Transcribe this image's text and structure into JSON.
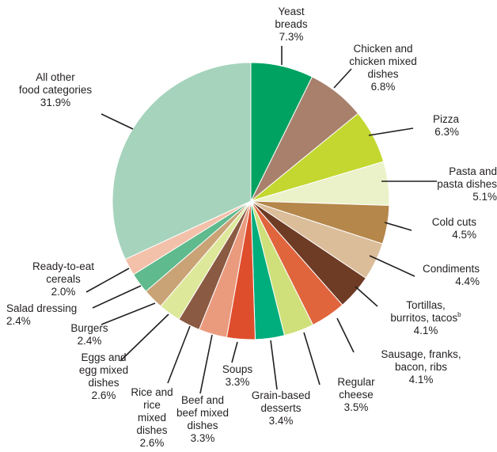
{
  "chart_data": {
    "type": "pie",
    "title": "",
    "start": "12 o'clock",
    "direction": "clockwise",
    "slices": [
      {
        "label": "Yeast breads",
        "lines": [
          "Yeast",
          "breads",
          "7.3%"
        ],
        "value": 7.3,
        "color": "#00a261"
      },
      {
        "label": "Chicken and chicken mixed dishes",
        "lines": [
          "Chicken and",
          "chicken mixed",
          "dishes",
          "6.8%"
        ],
        "value": 6.8,
        "color": "#a8806c"
      },
      {
        "label": "Pizza",
        "lines": [
          "Pizza",
          "6.3%"
        ],
        "value": 6.3,
        "color": "#c3d730"
      },
      {
        "label": "Pasta and pasta dishes",
        "lines": [
          "Pasta and",
          "pasta dishes",
          "5.1%"
        ],
        "value": 5.1,
        "color": "#ebf2c9"
      },
      {
        "label": "Cold cuts",
        "lines": [
          "Cold cuts",
          "4.5%"
        ],
        "value": 4.5,
        "color": "#b5874b"
      },
      {
        "label": "Condiments",
        "lines": [
          "Condiments",
          "4.4%"
        ],
        "value": 4.4,
        "color": "#dbbd9a"
      },
      {
        "label": "Tortillas, burritos, tacos",
        "lines": [
          "Tortillas,",
          "burritos, tacos",
          "4.1%"
        ],
        "sup": "b",
        "value": 4.1,
        "color": "#6e3b25"
      },
      {
        "label": "Sausage, franks, bacon, ribs",
        "lines": [
          "Sausage, franks,",
          "bacon, ribs",
          "4.1%"
        ],
        "value": 4.1,
        "color": "#e0653d"
      },
      {
        "label": "Regular cheese",
        "lines": [
          "Regular",
          "cheese",
          "3.5%"
        ],
        "value": 3.5,
        "color": "#cfe07a"
      },
      {
        "label": "Grain-based desserts",
        "lines": [
          "Grain-based",
          "desserts",
          "3.4%"
        ],
        "value": 3.4,
        "color": "#00ad7c"
      },
      {
        "label": "Soups",
        "lines": [
          "Soups",
          "3.3%"
        ],
        "value": 3.3,
        "color": "#de4e2d"
      },
      {
        "label": "Beef and beef mixed dishes",
        "lines": [
          "Beef and",
          "beef mixed",
          "dishes",
          "3.3%"
        ],
        "value": 3.3,
        "color": "#ea9b7e"
      },
      {
        "label": "Rice and rice mixed dishes",
        "lines": [
          "Rice and",
          "rice",
          "mixed",
          "dishes",
          "2.6%"
        ],
        "value": 2.6,
        "color": "#8b5a42"
      },
      {
        "label": "Eggs and egg mixed dishes",
        "lines": [
          "Eggs and",
          "egg mixed",
          "dishes",
          "2.6%"
        ],
        "value": 2.6,
        "color": "#dde89b"
      },
      {
        "label": "Burgers",
        "lines": [
          "Burgers",
          "2.4%"
        ],
        "value": 2.4,
        "color": "#c9a275"
      },
      {
        "label": "Salad dressing",
        "lines": [
          "Salad dressing",
          "2.4%"
        ],
        "value": 2.4,
        "color": "#5fba8d"
      },
      {
        "label": "Ready-to-eat cereals",
        "lines": [
          "Ready-to-eat",
          "cereals",
          "2.0%"
        ],
        "value": 2.0,
        "color": "#f3c0aa"
      },
      {
        "label": "All other food categories",
        "lines": [
          "All other",
          "food categories",
          "31.9%"
        ],
        "value": 31.9,
        "color": "#a6d3bc"
      }
    ]
  }
}
